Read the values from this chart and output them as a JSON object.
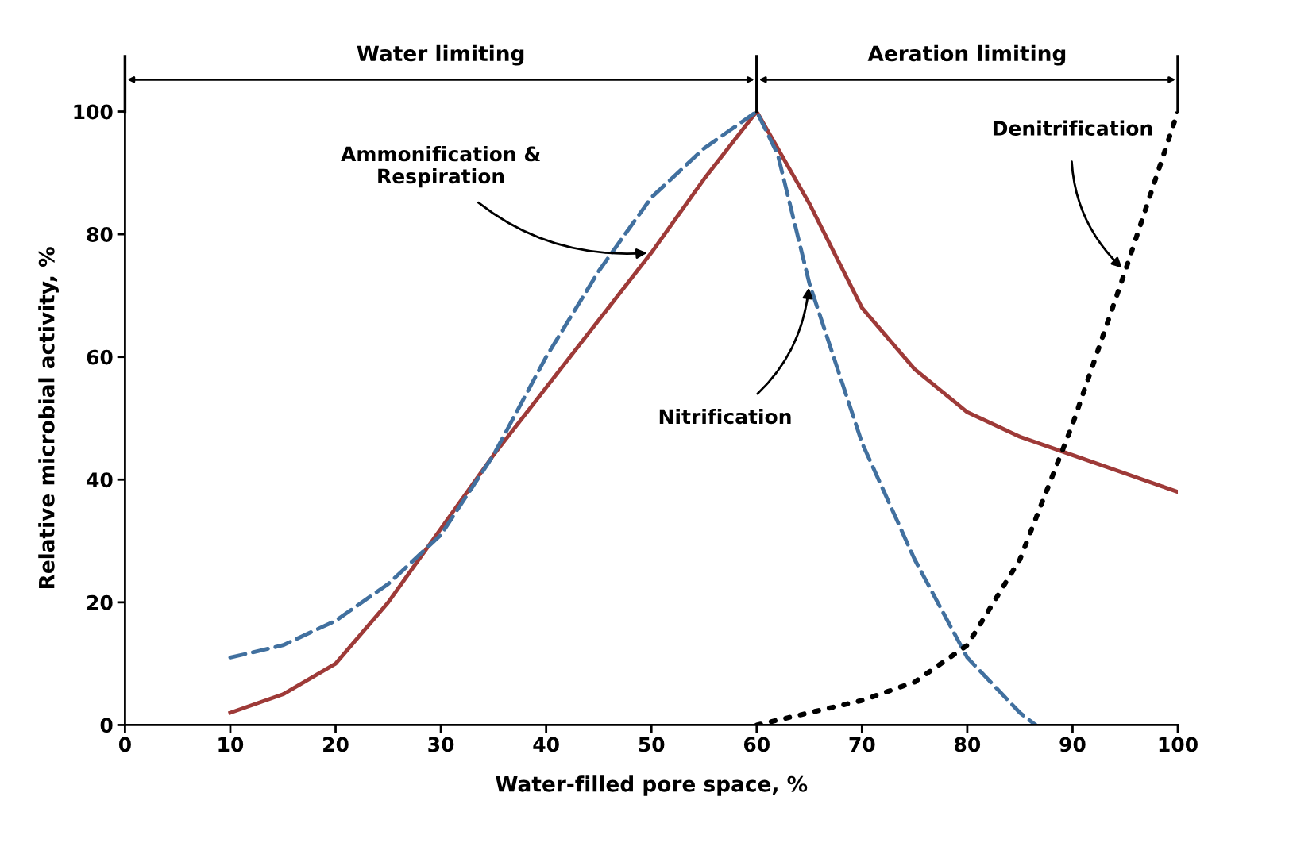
{
  "chart_data": {
    "type": "line",
    "xlabel": "Water-filled pore space, %",
    "ylabel": "Relative microbial activity, %",
    "xlim": [
      0,
      100
    ],
    "xticks": [
      0,
      10,
      20,
      30,
      40,
      50,
      60,
      70,
      80,
      90,
      100
    ],
    "ylim": [
      0,
      100
    ],
    "yticks": [
      0,
      20,
      40,
      60,
      80,
      100
    ],
    "grid": false,
    "legend": false,
    "series": [
      {
        "color": "#9e3a38",
        "line_style": "solid",
        "x": [
          10,
          15,
          20,
          25,
          30,
          35,
          40,
          45,
          50,
          55,
          60,
          65,
          70,
          75,
          80,
          85,
          90,
          95,
          100
        ],
        "values": [
          2,
          5,
          10,
          20,
          32,
          44,
          55,
          66,
          77,
          89,
          100,
          85,
          68,
          58,
          51,
          47,
          44,
          41,
          38
        ]
      },
      {
        "name": "Nitrification",
        "color": "#41709f",
        "line_style": "dashed",
        "x": [
          10,
          15,
          20,
          25,
          30,
          35,
          40,
          45,
          50,
          55,
          60,
          62,
          65,
          70,
          75,
          80,
          85,
          86.5
        ],
        "values": [
          11,
          13,
          17,
          23,
          31,
          44,
          60,
          74,
          86,
          94,
          100,
          93,
          72,
          46,
          27,
          11,
          2,
          0
        ]
      },
      {
        "name": "Denitrification",
        "color": "#000000",
        "line_style": "dotted",
        "x": [
          60,
          65,
          70,
          75,
          80,
          85,
          90,
          95,
          100
        ],
        "values": [
          0,
          2,
          4,
          7,
          13,
          27,
          49,
          74,
          100
        ]
      }
    ],
    "annotations": [
      "Water limiting",
      "Aeration limiting",
      {
        "text": "Ammonification & Respiration",
        "x": 50,
        "y": 77
      }
    ]
  }
}
